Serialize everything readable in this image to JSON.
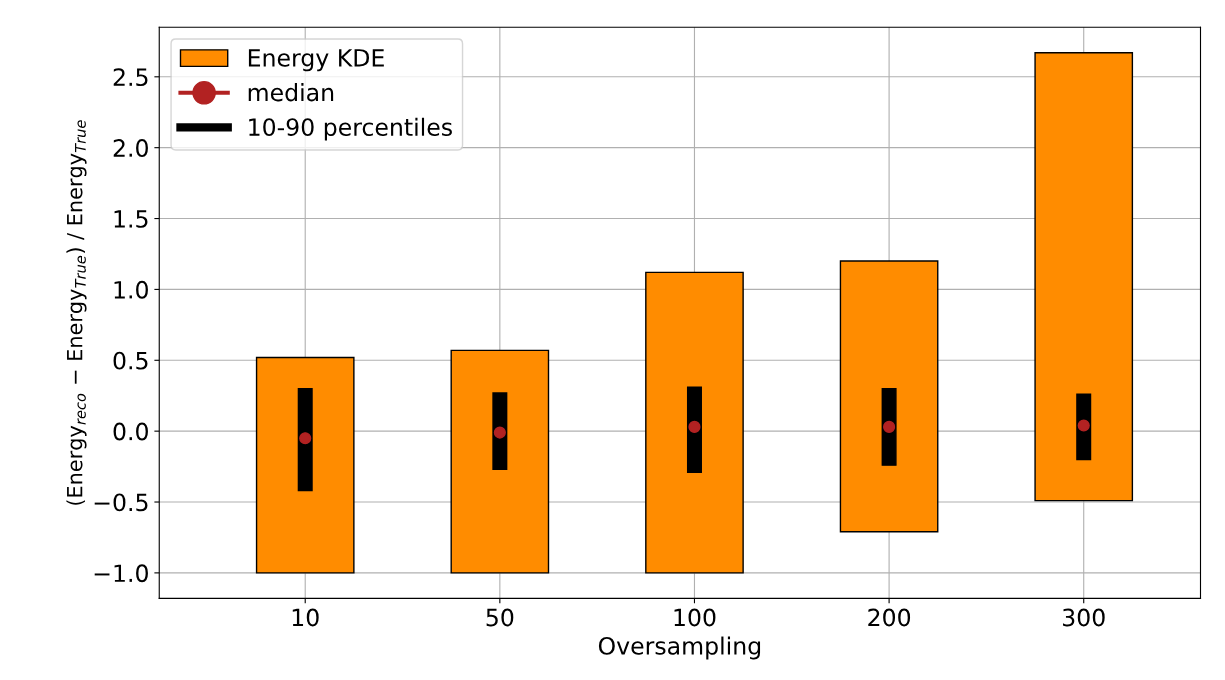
{
  "chart_data": {
    "type": "bar",
    "xlabel": "Oversampling",
    "ylabel": "(Energy$_{reco}$ − Energy$_{True}$) / Energy$_{True}$",
    "categories": [
      "10",
      "50",
      "100",
      "200",
      "300"
    ],
    "series": [
      {
        "name": "Energy KDE",
        "color": "#ff8c00",
        "base": [
          -1.0,
          -1.0,
          -1.0,
          -0.71,
          -0.49
        ],
        "values": [
          1.52,
          1.57,
          2.12,
          1.91,
          3.16
        ]
      },
      {
        "name": "median",
        "type": "scatter",
        "color": "#b22222",
        "values": [
          -0.05,
          -0.01,
          0.03,
          0.03,
          0.04
        ]
      },
      {
        "name": "10-90 percentiles",
        "color": "#000000",
        "base": [
          -0.42,
          -0.27,
          -0.29,
          -0.24,
          -0.2
        ],
        "values": [
          0.72,
          0.54,
          0.6,
          0.54,
          0.46
        ]
      }
    ],
    "ylim": [
      -1.18,
      2.85
    ],
    "yticks": [
      {
        "value": -1.0,
        "label": "−1.0"
      },
      {
        "value": -0.5,
        "label": "−0.5"
      },
      {
        "value": 0,
        "label": "0.0"
      },
      0.5,
      {
        "value": 1,
        "label": "1.0"
      },
      1.5,
      {
        "value": 2,
        "label": "2.0"
      },
      2.5
    ],
    "grid": true,
    "legend": "top left",
    "marker": "circle"
  }
}
